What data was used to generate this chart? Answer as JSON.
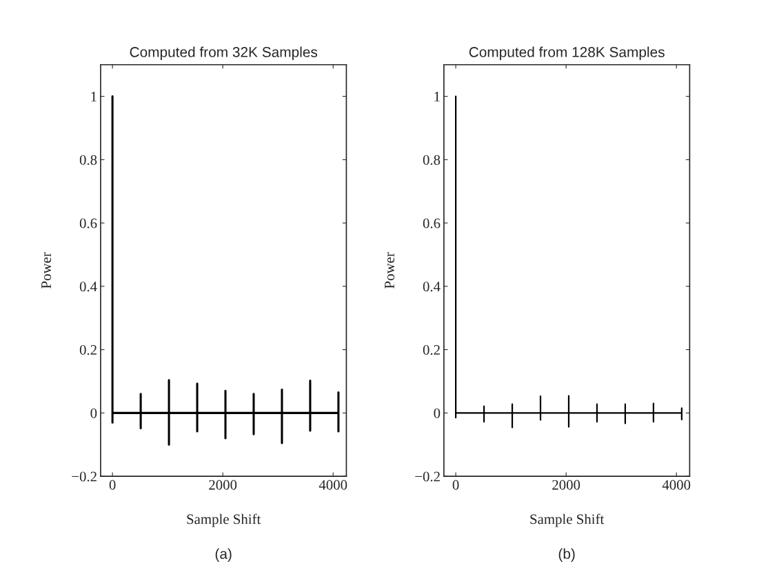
{
  "chart_data": [
    {
      "type": "line",
      "title": "Computed from 32K Samples",
      "xlabel": "Sample Shift",
      "ylabel": "Power",
      "annotations": [
        "(a)"
      ],
      "xlim": [
        -215,
        4240
      ],
      "ylim": [
        -0.2,
        1.1
      ],
      "xticks": [
        0,
        2000,
        4000
      ],
      "yticks": [
        {
          "value": -0.2,
          "label": "−0.2"
        },
        0,
        0.2,
        0.4,
        0.6,
        0.8,
        1
      ],
      "grid": false,
      "legend": false,
      "series": [
        {
          "color": "#000000",
          "x": [
            0,
            0,
            0,
            512,
            512,
            512,
            512,
            1024,
            1024,
            1024,
            1024,
            1536,
            1536,
            1536,
            1536,
            2048,
            2048,
            2048,
            2048,
            2560,
            2560,
            2560,
            2560,
            3072,
            3072,
            3072,
            3072,
            3584,
            3584,
            3584,
            3584,
            4096,
            4096,
            4096,
            4096
          ],
          "values": [
            1,
            -0.03,
            0,
            0,
            0.06,
            -0.048,
            0,
            0,
            0.104,
            -0.1,
            0,
            0,
            0.093,
            -0.058,
            0,
            0,
            0.07,
            -0.08,
            0,
            0,
            0.06,
            -0.067,
            0,
            0,
            0.074,
            -0.095,
            0,
            0,
            0.102,
            -0.056,
            0,
            0,
            0.065,
            -0.058,
            0
          ]
        }
      ]
    },
    {
      "type": "line",
      "title": "Computed from 128K Samples",
      "xlabel": "Sample Shift",
      "ylabel": "Power",
      "annotations": [
        "(b)"
      ],
      "xlim": [
        -215,
        4240
      ],
      "ylim": [
        -0.2,
        1.1
      ],
      "xticks": [
        0,
        2000,
        4000
      ],
      "yticks": [
        {
          "value": -0.2,
          "label": "−0.2"
        },
        0,
        0.2,
        0.4,
        0.6,
        0.8,
        1
      ],
      "grid": false,
      "legend": false,
      "series": [
        {
          "color": "#000000",
          "x": [
            0,
            0,
            0,
            512,
            512,
            512,
            512,
            1024,
            1024,
            1024,
            1024,
            1536,
            1536,
            1536,
            1536,
            2048,
            2048,
            2048,
            2048,
            2560,
            2560,
            2560,
            2560,
            3072,
            3072,
            3072,
            3072,
            3584,
            3584,
            3584,
            3584,
            4096,
            4096,
            4096,
            4096
          ],
          "values": [
            1,
            -0.015,
            0,
            0,
            0.021,
            -0.028,
            0,
            0,
            0.028,
            -0.046,
            0,
            0,
            0.053,
            -0.022,
            0,
            0,
            0.054,
            -0.044,
            0,
            0,
            0.028,
            -0.028,
            0,
            0,
            0.028,
            -0.033,
            0,
            0,
            0.03,
            -0.028,
            0,
            0,
            0.015,
            -0.021,
            0
          ]
        }
      ]
    }
  ]
}
